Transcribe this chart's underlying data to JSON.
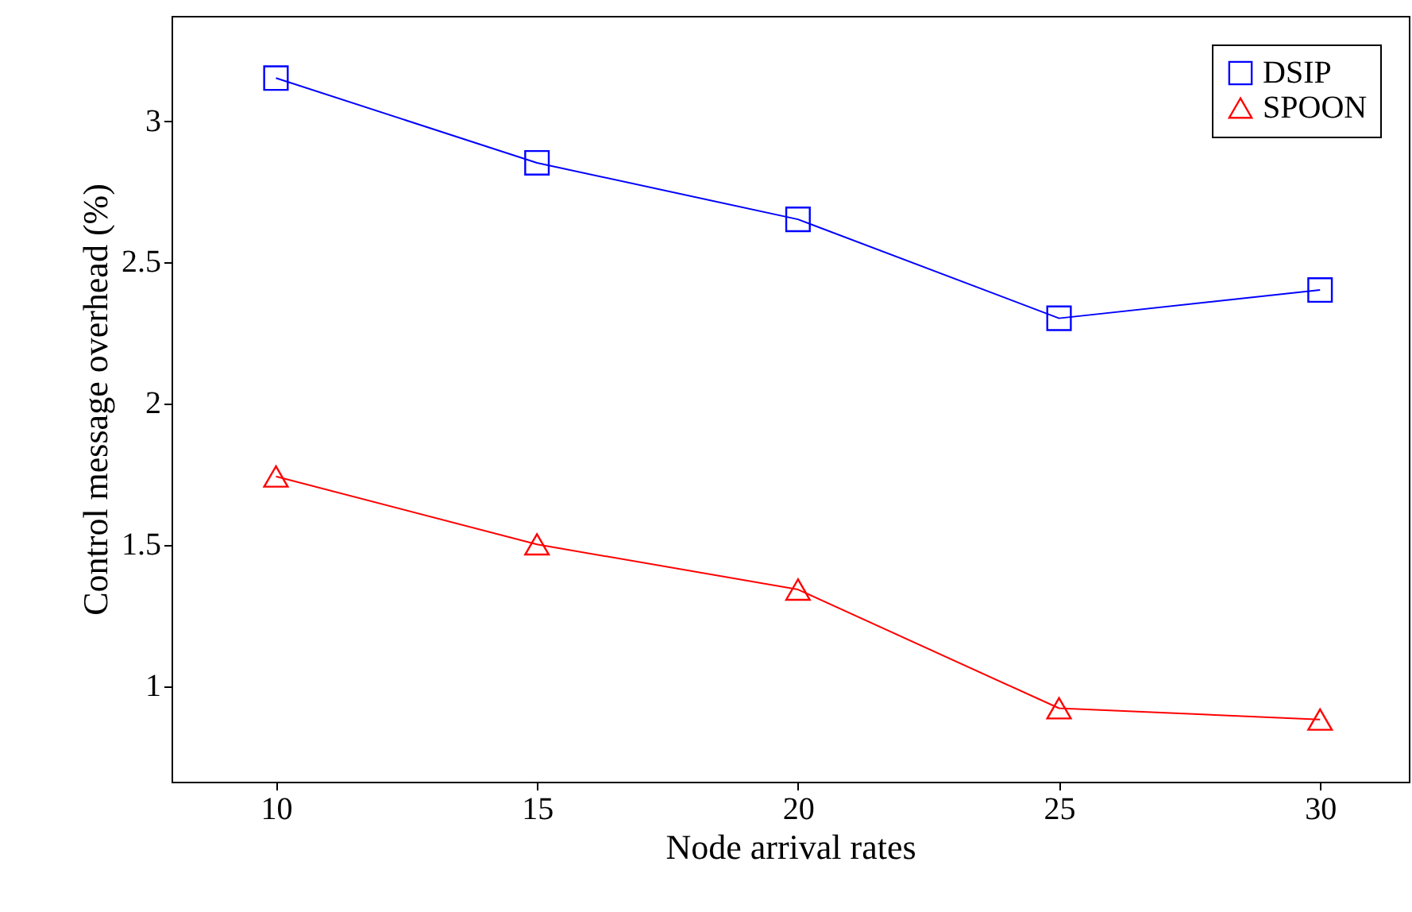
{
  "chart_data": {
    "type": "line",
    "xlabel": "Node arrival rates",
    "ylabel": "Control message overhead (%)",
    "x": [
      10,
      15,
      20,
      25,
      30
    ],
    "series": [
      {
        "name": "DSIP",
        "color": "#0000ff",
        "marker": "square",
        "values": [
          3.15,
          2.85,
          2.65,
          2.3,
          2.4
        ]
      },
      {
        "name": "SPOON",
        "color": "#ff0000",
        "marker": "triangle",
        "values": [
          1.74,
          1.5,
          1.34,
          0.92,
          0.88
        ]
      }
    ],
    "xlim": [
      8,
      31.7
    ],
    "xticks": [
      10,
      15,
      20,
      25,
      30
    ],
    "ylim": [
      0.66,
      3.37
    ],
    "yticks": [
      1,
      1.5,
      2,
      2.5,
      3
    ],
    "grid": false,
    "legend": "top right",
    "line_style": "solid"
  }
}
